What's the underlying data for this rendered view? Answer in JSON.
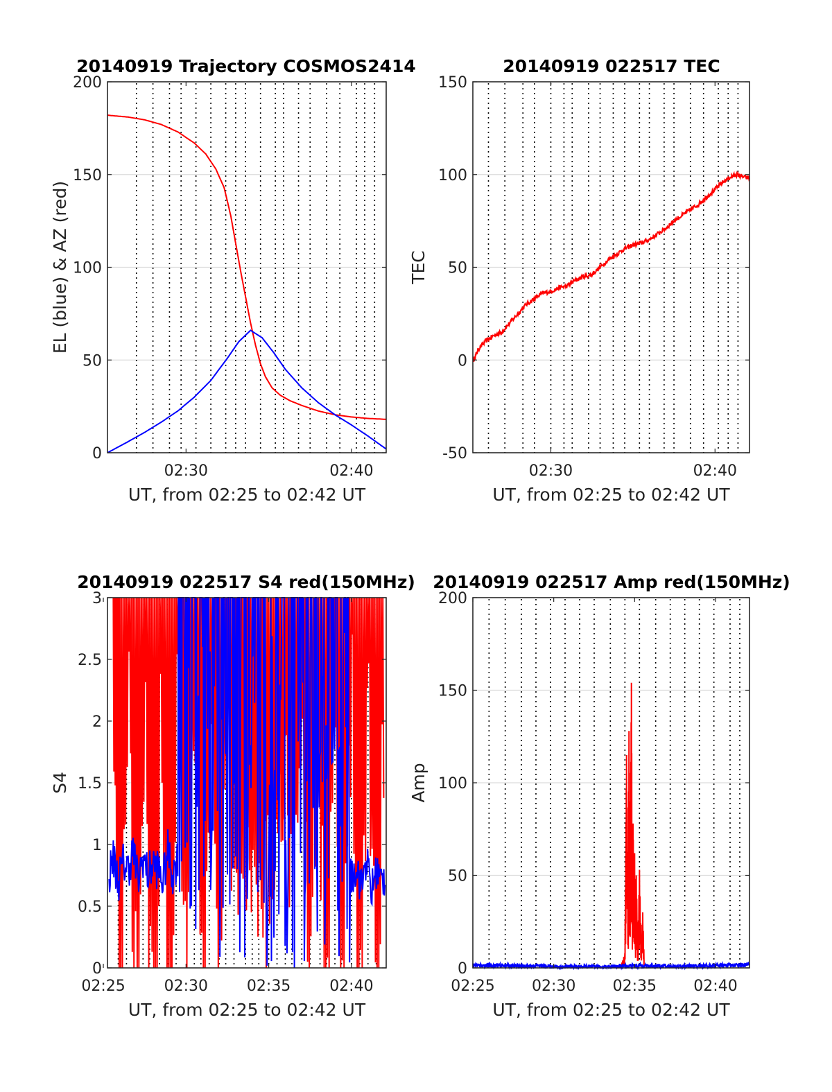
{
  "chart_data": [
    {
      "type": "line",
      "title": "20140919 Trajectory COSMOS2414",
      "xlabel": "UT, from 02:25 to 02:42 UT",
      "ylabel": "EL (blue) & AZ (red)",
      "xlim": [
        25.25,
        42.1
      ],
      "ylim": [
        0,
        200
      ],
      "xticks": [
        30,
        40
      ],
      "xtick_labels": [
        "02:30",
        "02:40"
      ],
      "yticks": [
        0,
        50,
        100,
        150,
        200
      ],
      "ytick_labels": [
        "0",
        "50",
        "100",
        "150",
        "200"
      ],
      "marker_lines_x": [
        27.0,
        28.0,
        29.0,
        29.7,
        30.6,
        31.5,
        32.4,
        33.0,
        33.6,
        34.5,
        35.4,
        35.9,
        36.8,
        37.5,
        38.5,
        39.3,
        40.3,
        40.8,
        41.4
      ],
      "grid": true,
      "series": [
        {
          "color": "#ff0000",
          "x": [
            25.25,
            26.5,
            27.5,
            28.5,
            29.5,
            30.5,
            31.2,
            31.8,
            32.3,
            32.7,
            33.0,
            33.3,
            33.6,
            33.9,
            34.2,
            34.5,
            34.8,
            35.2,
            35.7,
            36.3,
            37.0,
            38.0,
            39.0,
            40.0,
            41.0,
            42.1
          ],
          "y": [
            182,
            181,
            179.5,
            177,
            173,
            167,
            161,
            153,
            143,
            128,
            113,
            98,
            84,
            70,
            58,
            48,
            41,
            35,
            31,
            28,
            25.5,
            22.5,
            20.5,
            19.3,
            18.5,
            18
          ]
        },
        {
          "color": "#0000ff",
          "x": [
            25.25,
            26.5,
            27.5,
            28.5,
            29.5,
            30.5,
            31.5,
            32.5,
            33.2,
            33.9,
            34.6,
            35.3,
            36.0,
            37.0,
            38.0,
            39.0,
            40.0,
            41.0,
            42.1
          ],
          "y": [
            0,
            6,
            11,
            16.5,
            22.5,
            30,
            39,
            51,
            60,
            66,
            62,
            54,
            45,
            35,
            27,
            20.5,
            15,
            9,
            2
          ]
        }
      ]
    },
    {
      "type": "line",
      "title": "20140919 022517 TEC",
      "xlabel": "UT, from 02:25 to 02:42 UT",
      "ylabel": "TEC",
      "xlim": [
        25.25,
        42.1
      ],
      "ylim": [
        -50,
        150
      ],
      "xticks": [
        30,
        40
      ],
      "xtick_labels": [
        "02:30",
        "02:40"
      ],
      "yticks": [
        -50,
        0,
        50,
        100,
        150
      ],
      "ytick_labels": [
        "-50",
        "0",
        "50",
        "100",
        "150"
      ],
      "marker_lines_x": [
        26.2,
        27.2,
        28.3,
        29.0,
        30.0,
        30.8,
        31.3,
        32.3,
        33.0,
        33.8,
        34.5,
        35.4,
        36.0,
        36.9,
        37.5,
        38.5,
        39.3,
        40.2,
        40.8,
        41.4
      ],
      "grid": true,
      "series": [
        {
          "color": "#ff0000",
          "x": [
            25.3,
            25.6,
            26.0,
            26.5,
            27.0,
            27.5,
            28.0,
            28.5,
            29.0,
            29.5,
            30.0,
            30.5,
            31.0,
            31.5,
            32.0,
            32.5,
            33.0,
            33.5,
            34.0,
            34.5,
            35.0,
            35.5,
            36.0,
            36.5,
            37.0,
            37.5,
            38.0,
            38.5,
            39.0,
            39.5,
            40.0,
            40.5,
            41.0,
            41.3,
            41.6,
            42.1
          ],
          "y": [
            0,
            6,
            10,
            13,
            15,
            20,
            25,
            30,
            33,
            36,
            37,
            39,
            40,
            43,
            45,
            46,
            50,
            54,
            57,
            60,
            62,
            63,
            65,
            68,
            71,
            75,
            78,
            81,
            84,
            88,
            92,
            96,
            99,
            100,
            99,
            98
          ]
        }
      ]
    },
    {
      "type": "line",
      "title": "20140919 022517 S4 red(150MHz)",
      "xlabel": "UT, from 02:25 to 02:42 UT",
      "ylabel": "S4",
      "xlim": [
        25.25,
        42.1
      ],
      "ylim": [
        0,
        3
      ],
      "xticks": [
        25,
        30,
        35,
        40
      ],
      "xtick_labels": [
        "02:25",
        "02:30",
        "02:35",
        "02:40"
      ],
      "yticks": [
        0,
        0.5,
        1,
        1.5,
        2,
        2.5,
        3
      ],
      "ytick_labels": [
        "0",
        "0.5",
        "1",
        "1.5",
        "2",
        "2.5",
        "3"
      ],
      "marker_lines_x": [
        25.9,
        26.4,
        27.4,
        27.8,
        28.4,
        28.9,
        29.4,
        30.5,
        30.9,
        31.4,
        32.0,
        32.4,
        32.9,
        33.6,
        34.0,
        34.4,
        35.0,
        35.5,
        36.0,
        36.4,
        37.0,
        37.5,
        38.1,
        38.5,
        39.0,
        39.4,
        40.0,
        40.5,
        41.0,
        41.5
      ],
      "grid": true,
      "series": [
        {
          "color": "#ff0000",
          "description_of_values": "noisy oscillation saturating 0 to 3",
          "x": [
            25.6,
            26.0,
            26.5,
            27.0,
            27.5,
            28.0,
            28.5,
            29.0,
            29.5,
            30.0,
            30.5,
            31.0,
            31.5,
            32.0,
            32.5,
            33.0,
            33.5,
            34.0,
            34.5,
            35.0,
            35.5,
            36.0,
            36.5,
            37.0,
            37.5,
            38.0,
            38.5,
            39.0,
            39.5,
            40.0,
            40.5,
            41.0,
            41.5,
            42.0
          ],
          "y": [
            3,
            0,
            3,
            0.2,
            3,
            0,
            2.8,
            0.3,
            3,
            0.4,
            3,
            0.6,
            2.7,
            1.2,
            2.9,
            1.5,
            2.2,
            1.3,
            1.0,
            1.6,
            1.4,
            2.0,
            1.5,
            2.5,
            0.3,
            3,
            0,
            3,
            0,
            3,
            0.2,
            3,
            0,
            3
          ]
        },
        {
          "color": "#0000ff",
          "x": [
            25.35,
            25.6,
            25.9,
            26.2,
            26.5,
            26.8,
            27.1,
            27.4,
            27.7,
            28.0,
            28.3,
            28.6,
            28.9,
            29.2,
            29.5,
            29.8,
            30.1,
            30.4,
            30.7,
            31.0,
            31.3,
            31.6,
            31.9,
            32.2,
            32.5,
            32.8,
            33.1,
            33.4,
            33.7,
            34.0,
            34.3,
            34.6,
            34.9,
            35.2,
            35.5,
            35.8,
            36.1,
            36.4,
            36.7,
            37.0,
            37.3,
            37.6,
            37.9,
            38.2,
            38.5,
            38.8,
            39.1,
            39.4,
            39.7,
            40.0,
            40.3,
            40.6,
            40.9,
            41.2,
            41.5,
            41.8,
            42.05
          ],
          "y": [
            0.75,
            0.9,
            0.7,
            0.85,
            0.8,
            0.95,
            0.7,
            0.9,
            0.75,
            0.85,
            0.8,
            0.7,
            0.95,
            0.75,
            0.9,
            3,
            2.4,
            3,
            2.8,
            3,
            2.2,
            3,
            2.6,
            3,
            2.9,
            2.3,
            3,
            2.5,
            0.6,
            2.9,
            1.4,
            3,
            0,
            3,
            1.2,
            3,
            0.2,
            3,
            2.0,
            3,
            1.6,
            2.8,
            0.9,
            3,
            2.2,
            3,
            1.5,
            2.7,
            3,
            0.7,
            0.85,
            0.65,
            0.9,
            0.6,
            0.8,
            0.7,
            0.75
          ]
        }
      ]
    },
    {
      "type": "line",
      "title": "20140919 022517 Amp red(150MHz)",
      "xlabel": "UT, from 02:25 to 02:42 UT",
      "ylabel": "Amp",
      "xlim": [
        25.0,
        42.1
      ],
      "ylim": [
        0,
        200
      ],
      "xticks": [
        25,
        30,
        35,
        40
      ],
      "xtick_labels": [
        "02:25",
        "02:30",
        "02:35",
        "02:40"
      ],
      "yticks": [
        0,
        50,
        100,
        150,
        200
      ],
      "ytick_labels": [
        "0",
        "50",
        "100",
        "150",
        "200"
      ],
      "marker_lines_x": [
        26.0,
        27.0,
        28.0,
        28.9,
        29.8,
        30.7,
        31.6,
        32.5,
        33.5,
        34.4,
        35.3,
        36.3,
        37.2,
        38.1,
        39.0,
        39.9,
        40.9,
        41.5
      ],
      "grid": true,
      "series": [
        {
          "color": "#ff0000",
          "x": [
            33.9,
            34.2,
            34.4,
            34.45,
            34.5,
            34.6,
            34.65,
            34.7,
            34.75,
            34.8,
            34.85,
            34.9,
            34.95,
            35.0,
            35.05,
            35.1,
            35.2,
            35.3,
            35.4,
            35.5,
            35.6
          ],
          "y": [
            0,
            2,
            8,
            60,
            115,
            30,
            128,
            60,
            90,
            154,
            40,
            78,
            52,
            62,
            20,
            50,
            12,
            53,
            10,
            30,
            0
          ]
        },
        {
          "color": "#0000ff",
          "description_of_values": "baseline noise near 0-3 across full range",
          "x": [
            25.0,
            26.0,
            27.0,
            28.0,
            29.0,
            30.0,
            31.0,
            32.0,
            33.0,
            34.0,
            35.0,
            36.0,
            37.0,
            38.0,
            39.0,
            40.0,
            41.0,
            42.1
          ],
          "y": [
            1.5,
            1.2,
            1.3,
            0.8,
            1.2,
            0.6,
            0.5,
            0.6,
            0.5,
            0.8,
            1.2,
            1.0,
            0.9,
            0.8,
            1.0,
            1.3,
            1.5,
            1.6
          ]
        }
      ]
    }
  ]
}
